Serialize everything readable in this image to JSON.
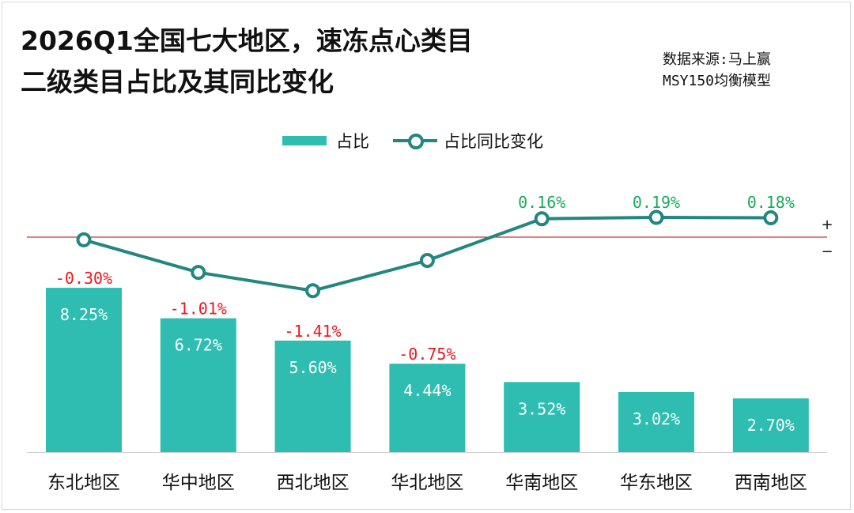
{
  "title_line1": "2026Q1全国七大地区，速冻点心类目",
  "title_line2": "二级类目占比及其同比变化",
  "source_line1": "数据来源:马上赢",
  "source_line2": "MSY150均衡模型",
  "sign_plus": "+",
  "sign_minus": "−",
  "colors": {
    "bar": "#2ebdb0",
    "line": "#23867f",
    "positive": "#1aab5b",
    "negative": "#e8191f",
    "zero_line": "#c00000"
  },
  "chart_data": {
    "type": "bar",
    "categories": [
      "东北地区",
      "华中地区",
      "西北地区",
      "华北地区",
      "华南地区",
      "华东地区",
      "西南地区"
    ],
    "series": [
      {
        "name": "占比",
        "type": "bar",
        "values": [
          8.25,
          6.72,
          5.6,
          4.44,
          3.52,
          3.02,
          2.7
        ],
        "labels": [
          "8.25%",
          "6.72%",
          "5.60%",
          "4.44%",
          "3.52%",
          "3.02%",
          "2.70%"
        ]
      },
      {
        "name": "占比同比变化",
        "type": "line",
        "values": [
          -0.3,
          -1.01,
          -1.41,
          -0.75,
          0.16,
          0.19,
          0.18
        ],
        "labels": [
          "-0.30%",
          "-1.01%",
          "-1.41%",
          "-0.75%",
          "0.16%",
          "0.19%",
          "0.18%"
        ]
      }
    ],
    "legend": "top-center",
    "grid": false
  }
}
